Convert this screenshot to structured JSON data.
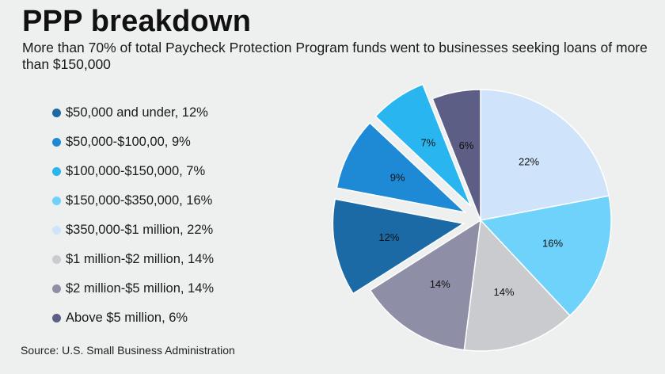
{
  "header": {
    "title": "PPP breakdown",
    "subtitle": "More than 70% of total Paycheck Protection Program funds went to businesses seeking loans of more than $150,000"
  },
  "legend": {
    "items": [
      {
        "label": "$50,000 and under, 12%",
        "color": "#1b6aa5"
      },
      {
        "label": "$50,000-$100,00, 9%",
        "color": "#1e8ad6"
      },
      {
        "label": "$100,000-$150,000, 7%",
        "color": "#29b5ef"
      },
      {
        "label": "$150,000-$350,000, 16%",
        "color": "#6fd2fb"
      },
      {
        "label": "$350,000-$1 million, 22%",
        "color": "#cfe3fa"
      },
      {
        "label": "$1 million-$2 million, 14%",
        "color": "#c9cbce"
      },
      {
        "label": "$2 million-$5 million, 14%",
        "color": "#8e8fa6"
      },
      {
        "label": "Above $5 million, 6%",
        "color": "#5c5e85"
      }
    ]
  },
  "footer": {
    "source": "Source: U.S. Small Business Administration"
  },
  "chart_data": {
    "type": "pie",
    "title": "PPP breakdown",
    "categories": [
      "$50,000 and under",
      "$50,000-$100,00",
      "$100,000-$150,000",
      "$150,000-$350,000",
      "$350,000-$1 million",
      "$1 million-$2 million",
      "$2 million-$5 million",
      "Above $5 million"
    ],
    "values": [
      12,
      9,
      7,
      16,
      22,
      14,
      14,
      6
    ],
    "labels": [
      "12%",
      "9%",
      "7%",
      "16%",
      "22%",
      "14%",
      "14%",
      "6%"
    ],
    "colors": [
      "#1b6aa5",
      "#1e8ad6",
      "#29b5ef",
      "#6fd2fb",
      "#cfe3fa",
      "#c9cbce",
      "#8e8fa6",
      "#5c5e85"
    ],
    "exploded_slices": [
      "$50,000 and under",
      "$50,000-$100,00",
      "$100,000-$150,000"
    ],
    "legend_position": "left"
  }
}
